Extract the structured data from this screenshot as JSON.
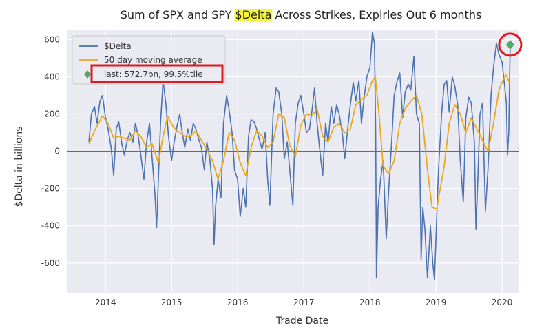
{
  "chart_data": {
    "type": "line",
    "title_parts": [
      "Sum of SPX and SPY ",
      "$Delta",
      " Across Strikes, Expiries Out 6 months"
    ],
    "title_highlight_color": "#f7f53a",
    "xlabel": "Trade Date",
    "ylabel": "$Delta in billions",
    "xlim": [
      "2013-06-01",
      "2020-04-01"
    ],
    "ylim": [
      -760,
      650
    ],
    "x_ticks": [
      "2014",
      "2015",
      "2016",
      "2017",
      "2018",
      "2019",
      "2020"
    ],
    "y_ticks": [
      -600,
      -400,
      -200,
      0,
      200,
      400,
      600
    ],
    "grid": true,
    "background_color": "#eaeaf2",
    "legend_position": "top-left",
    "zero_line": {
      "value": 0,
      "color": "#d23b3b"
    },
    "series": [
      {
        "name": "$Delta",
        "color": "#4c72b0",
        "points": [
          [
            "2013-10-01",
            50
          ],
          [
            "2013-10-15",
            200
          ],
          [
            "2013-11-01",
            240
          ],
          [
            "2013-11-15",
            150
          ],
          [
            "2013-12-01",
            270
          ],
          [
            "2013-12-15",
            300
          ],
          [
            "2014-01-01",
            180
          ],
          [
            "2014-01-15",
            120
          ],
          [
            "2014-02-01",
            20
          ],
          [
            "2014-02-15",
            -130
          ],
          [
            "2014-03-01",
            120
          ],
          [
            "2014-03-15",
            160
          ],
          [
            "2014-04-01",
            40
          ],
          [
            "2014-04-15",
            -20
          ],
          [
            "2014-05-01",
            60
          ],
          [
            "2014-05-15",
            100
          ],
          [
            "2014-06-01",
            50
          ],
          [
            "2014-06-15",
            150
          ],
          [
            "2014-07-01",
            80
          ],
          [
            "2014-07-15",
            -20
          ],
          [
            "2014-08-01",
            -150
          ],
          [
            "2014-08-15",
            40
          ],
          [
            "2014-09-01",
            150
          ],
          [
            "2014-09-15",
            -30
          ],
          [
            "2014-10-01",
            -230
          ],
          [
            "2014-10-10",
            -410
          ],
          [
            "2014-10-20",
            -150
          ],
          [
            "2014-11-01",
            150
          ],
          [
            "2014-11-15",
            380
          ],
          [
            "2014-12-01",
            250
          ],
          [
            "2014-12-15",
            80
          ],
          [
            "2015-01-01",
            -50
          ],
          [
            "2015-01-15",
            50
          ],
          [
            "2015-02-01",
            140
          ],
          [
            "2015-02-15",
            200
          ],
          [
            "2015-03-01",
            100
          ],
          [
            "2015-03-15",
            20
          ],
          [
            "2015-04-01",
            120
          ],
          [
            "2015-04-15",
            60
          ],
          [
            "2015-05-01",
            150
          ],
          [
            "2015-05-15",
            120
          ],
          [
            "2015-06-01",
            60
          ],
          [
            "2015-06-15",
            20
          ],
          [
            "2015-07-01",
            -100
          ],
          [
            "2015-07-15",
            50
          ],
          [
            "2015-08-01",
            -50
          ],
          [
            "2015-08-15",
            -200
          ],
          [
            "2015-08-24",
            -500
          ],
          [
            "2015-09-01",
            -300
          ],
          [
            "2015-09-15",
            -150
          ],
          [
            "2015-10-01",
            -250
          ],
          [
            "2015-10-15",
            150
          ],
          [
            "2015-11-01",
            300
          ],
          [
            "2015-11-15",
            220
          ],
          [
            "2015-12-01",
            100
          ],
          [
            "2015-12-15",
            -100
          ],
          [
            "2016-01-01",
            -150
          ],
          [
            "2016-01-15",
            -350
          ],
          [
            "2016-02-01",
            -200
          ],
          [
            "2016-02-15",
            -300
          ],
          [
            "2016-03-01",
            80
          ],
          [
            "2016-03-15",
            170
          ],
          [
            "2016-04-01",
            160
          ],
          [
            "2016-04-15",
            120
          ],
          [
            "2016-05-01",
            60
          ],
          [
            "2016-05-15",
            10
          ],
          [
            "2016-06-01",
            100
          ],
          [
            "2016-06-15",
            -150
          ],
          [
            "2016-06-27",
            -290
          ],
          [
            "2016-07-15",
            200
          ],
          [
            "2016-08-01",
            340
          ],
          [
            "2016-08-15",
            320
          ],
          [
            "2016-09-01",
            200
          ],
          [
            "2016-09-15",
            -40
          ],
          [
            "2016-10-01",
            50
          ],
          [
            "2016-10-15",
            -100
          ],
          [
            "2016-11-01",
            -290
          ],
          [
            "2016-11-15",
            150
          ],
          [
            "2016-12-01",
            260
          ],
          [
            "2016-12-15",
            300
          ],
          [
            "2017-01-01",
            200
          ],
          [
            "2017-01-15",
            100
          ],
          [
            "2017-02-01",
            120
          ],
          [
            "2017-02-15",
            220
          ],
          [
            "2017-03-01",
            340
          ],
          [
            "2017-03-15",
            150
          ],
          [
            "2017-04-01",
            -10
          ],
          [
            "2017-04-15",
            -130
          ],
          [
            "2017-05-01",
            150
          ],
          [
            "2017-05-15",
            50
          ],
          [
            "2017-06-01",
            240
          ],
          [
            "2017-06-15",
            150
          ],
          [
            "2017-07-01",
            250
          ],
          [
            "2017-07-15",
            200
          ],
          [
            "2017-08-01",
            100
          ],
          [
            "2017-08-15",
            -40
          ],
          [
            "2017-09-01",
            130
          ],
          [
            "2017-09-15",
            250
          ],
          [
            "2017-10-01",
            370
          ],
          [
            "2017-10-15",
            270
          ],
          [
            "2017-11-01",
            380
          ],
          [
            "2017-11-15",
            150
          ],
          [
            "2017-12-01",
            300
          ],
          [
            "2017-12-15",
            400
          ],
          [
            "2018-01-01",
            450
          ],
          [
            "2018-01-15",
            640
          ],
          [
            "2018-01-26",
            580
          ],
          [
            "2018-02-02",
            100
          ],
          [
            "2018-02-06",
            -680
          ],
          [
            "2018-02-15",
            -300
          ],
          [
            "2018-03-01",
            -150
          ],
          [
            "2018-03-15",
            -50
          ],
          [
            "2018-04-01",
            -470
          ],
          [
            "2018-04-15",
            -200
          ],
          [
            "2018-05-01",
            50
          ],
          [
            "2018-05-15",
            300
          ],
          [
            "2018-06-01",
            380
          ],
          [
            "2018-06-15",
            420
          ],
          [
            "2018-07-01",
            180
          ],
          [
            "2018-07-15",
            320
          ],
          [
            "2018-08-01",
            360
          ],
          [
            "2018-08-15",
            330
          ],
          [
            "2018-09-01",
            510
          ],
          [
            "2018-09-15",
            200
          ],
          [
            "2018-10-01",
            150
          ],
          [
            "2018-10-11",
            -580
          ],
          [
            "2018-10-20",
            -300
          ],
          [
            "2018-11-01",
            -420
          ],
          [
            "2018-11-15",
            -680
          ],
          [
            "2018-12-01",
            -400
          ],
          [
            "2018-12-15",
            -610
          ],
          [
            "2018-12-24",
            -690
          ],
          [
            "2019-01-05",
            -350
          ],
          [
            "2019-01-15",
            -100
          ],
          [
            "2019-02-01",
            200
          ],
          [
            "2019-02-15",
            360
          ],
          [
            "2019-03-01",
            380
          ],
          [
            "2019-03-15",
            210
          ],
          [
            "2019-04-01",
            400
          ],
          [
            "2019-04-15",
            350
          ],
          [
            "2019-05-01",
            250
          ],
          [
            "2019-05-15",
            -50
          ],
          [
            "2019-06-01",
            -270
          ],
          [
            "2019-06-15",
            180
          ],
          [
            "2019-07-01",
            290
          ],
          [
            "2019-07-15",
            260
          ],
          [
            "2019-08-01",
            50
          ],
          [
            "2019-08-10",
            -420
          ],
          [
            "2019-08-20",
            -150
          ],
          [
            "2019-09-01",
            200
          ],
          [
            "2019-09-15",
            260
          ],
          [
            "2019-10-01",
            -320
          ],
          [
            "2019-10-15",
            -100
          ],
          [
            "2019-11-01",
            300
          ],
          [
            "2019-11-15",
            450
          ],
          [
            "2019-12-01",
            580
          ],
          [
            "2019-12-15",
            520
          ],
          [
            "2020-01-01",
            480
          ],
          [
            "2020-01-15",
            350
          ],
          [
            "2020-01-25",
            260
          ],
          [
            "2020-01-31",
            -20
          ],
          [
            "2020-02-07",
            100
          ],
          [
            "2020-02-15",
            572.7
          ]
        ]
      },
      {
        "name": "50 day moving average",
        "color": "#e8a81c",
        "points": [
          [
            "2013-10-01",
            40
          ],
          [
            "2013-11-01",
            110
          ],
          [
            "2013-12-15",
            190
          ],
          [
            "2014-01-15",
            150
          ],
          [
            "2014-02-15",
            70
          ],
          [
            "2014-03-15",
            80
          ],
          [
            "2014-04-15",
            70
          ],
          [
            "2014-05-15",
            60
          ],
          [
            "2014-06-15",
            110
          ],
          [
            "2014-07-15",
            80
          ],
          [
            "2014-08-15",
            20
          ],
          [
            "2014-09-15",
            40
          ],
          [
            "2014-10-20",
            -60
          ],
          [
            "2014-11-15",
            80
          ],
          [
            "2014-12-10",
            190
          ],
          [
            "2015-01-10",
            130
          ],
          [
            "2015-02-15",
            100
          ],
          [
            "2015-03-15",
            80
          ],
          [
            "2015-04-15",
            80
          ],
          [
            "2015-05-15",
            110
          ],
          [
            "2015-06-15",
            60
          ],
          [
            "2015-07-15",
            10
          ],
          [
            "2015-08-15",
            -50
          ],
          [
            "2015-09-15",
            -150
          ],
          [
            "2015-10-15",
            -50
          ],
          [
            "2015-11-15",
            100
          ],
          [
            "2015-12-15",
            60
          ],
          [
            "2016-01-15",
            -60
          ],
          [
            "2016-02-15",
            -130
          ],
          [
            "2016-03-15",
            20
          ],
          [
            "2016-04-15",
            110
          ],
          [
            "2016-05-15",
            80
          ],
          [
            "2016-06-15",
            20
          ],
          [
            "2016-07-15",
            50
          ],
          [
            "2016-08-15",
            200
          ],
          [
            "2016-09-15",
            180
          ],
          [
            "2016-10-15",
            30
          ],
          [
            "2016-11-15",
            -30
          ],
          [
            "2016-12-15",
            140
          ],
          [
            "2017-01-15",
            200
          ],
          [
            "2017-02-15",
            190
          ],
          [
            "2017-03-15",
            230
          ],
          [
            "2017-04-15",
            80
          ],
          [
            "2017-05-15",
            50
          ],
          [
            "2017-06-15",
            130
          ],
          [
            "2017-07-15",
            150
          ],
          [
            "2017-08-15",
            100
          ],
          [
            "2017-09-15",
            120
          ],
          [
            "2017-10-15",
            250
          ],
          [
            "2017-11-15",
            280
          ],
          [
            "2017-12-15",
            300
          ],
          [
            "2018-01-15",
            380
          ],
          [
            "2018-01-31",
            400
          ],
          [
            "2018-02-20",
            200
          ],
          [
            "2018-03-15",
            -80
          ],
          [
            "2018-04-15",
            -120
          ],
          [
            "2018-05-15",
            -50
          ],
          [
            "2018-06-15",
            150
          ],
          [
            "2018-07-15",
            230
          ],
          [
            "2018-08-15",
            270
          ],
          [
            "2018-09-15",
            300
          ],
          [
            "2018-10-15",
            200
          ],
          [
            "2018-11-15",
            -100
          ],
          [
            "2018-12-10",
            -300
          ],
          [
            "2019-01-05",
            -310
          ],
          [
            "2019-02-15",
            -80
          ],
          [
            "2019-03-15",
            150
          ],
          [
            "2019-04-15",
            250
          ],
          [
            "2019-05-15",
            200
          ],
          [
            "2019-06-15",
            100
          ],
          [
            "2019-07-15",
            180
          ],
          [
            "2019-08-15",
            120
          ],
          [
            "2019-09-15",
            60
          ],
          [
            "2019-10-15",
            0
          ],
          [
            "2019-11-15",
            150
          ],
          [
            "2019-12-15",
            330
          ],
          [
            "2020-01-10",
            390
          ],
          [
            "2020-01-25",
            410
          ],
          [
            "2020-02-10",
            370
          ]
        ]
      }
    ],
    "last_point": {
      "label": "last: 572.7bn, 99.5%tile",
      "date": "2020-02-15",
      "value": 572.7,
      "color": "#55a868",
      "highlight_color": "#e0191f"
    }
  }
}
